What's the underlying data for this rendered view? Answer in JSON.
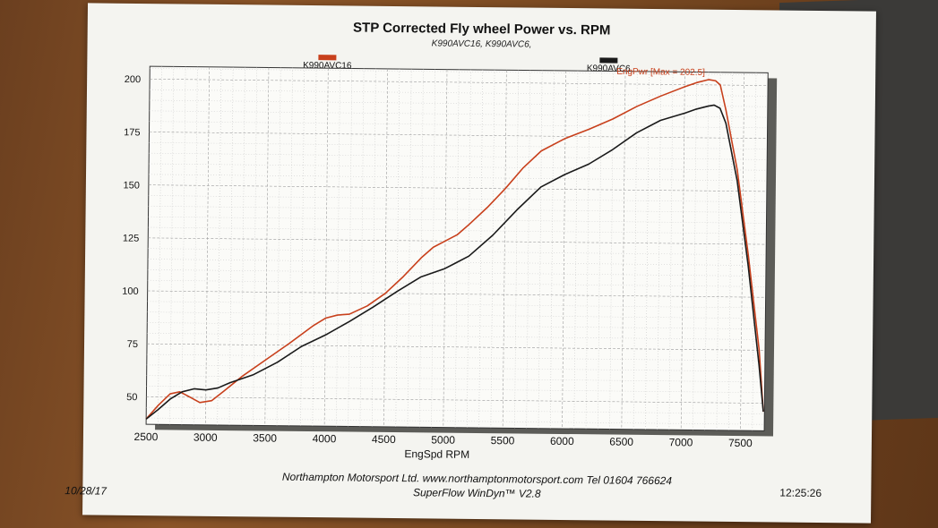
{
  "chart_data": {
    "type": "line",
    "title": "STP Corrected Fly wheel Power vs. RPM",
    "subtitle": "K990AVC16, K990AVC6,",
    "xlabel": "EngSpd  RPM",
    "ylabel": "",
    "xlim": [
      2500,
      7700
    ],
    "ylim": [
      37,
      206
    ],
    "xticks": [
      2500,
      3000,
      3500,
      4000,
      4500,
      5000,
      5500,
      6000,
      6500,
      7000,
      7500
    ],
    "yticks": [
      50,
      75,
      100,
      125,
      150,
      175,
      200
    ],
    "grid": true,
    "annotation": "EngPwr [Max = 202.5]",
    "series": [
      {
        "name": "K990AVC16",
        "color": "#c8401c",
        "x": [
          2500,
          2600,
          2700,
          2780,
          2850,
          2950,
          3050,
          3150,
          3300,
          3500,
          3700,
          3900,
          4000,
          4100,
          4200,
          4350,
          4500,
          4650,
          4800,
          4900,
          5000,
          5100,
          5200,
          5350,
          5500,
          5650,
          5800,
          6000,
          6200,
          6400,
          6600,
          6800,
          7000,
          7100,
          7200,
          7260,
          7300,
          7350,
          7450,
          7550,
          7650,
          7690
        ],
        "y": [
          39.5,
          46,
          51.5,
          52.5,
          50.5,
          47.5,
          48.5,
          53,
          60,
          68,
          76,
          84.5,
          88,
          89.5,
          90,
          94,
          100,
          108,
          117,
          122,
          125,
          128,
          133,
          141,
          150,
          160,
          168,
          174,
          178.5,
          183.5,
          189.5,
          194.5,
          199,
          201,
          202.5,
          202,
          200,
          188,
          160,
          120,
          75,
          46
        ]
      },
      {
        "name": "K990AVC6",
        "color": "#1a1a1a",
        "x": [
          2500,
          2600,
          2700,
          2800,
          2900,
          3000,
          3100,
          3200,
          3400,
          3600,
          3800,
          4000,
          4200,
          4400,
          4600,
          4800,
          5000,
          5200,
          5400,
          5600,
          5800,
          6000,
          6200,
          6400,
          6600,
          6800,
          7000,
          7100,
          7200,
          7250,
          7300,
          7350,
          7450,
          7550,
          7650,
          7690
        ],
        "y": [
          39.5,
          44,
          49,
          52.5,
          54,
          53.5,
          54.5,
          57,
          61,
          67,
          74.5,
          80,
          86.5,
          93.5,
          101,
          108,
          112,
          118,
          128,
          140,
          151,
          157,
          162,
          169,
          177,
          183,
          186.5,
          188.5,
          190,
          190.5,
          189,
          182,
          155,
          115,
          68,
          46
        ]
      }
    ]
  },
  "footer": {
    "company": "Northampton Motorsport Ltd. www.northamptonmotorsport.com Tel 01604 766624",
    "software": "SuperFlow WinDyn™ V2.8",
    "date": "10/28/17",
    "time": "12:25:26"
  }
}
